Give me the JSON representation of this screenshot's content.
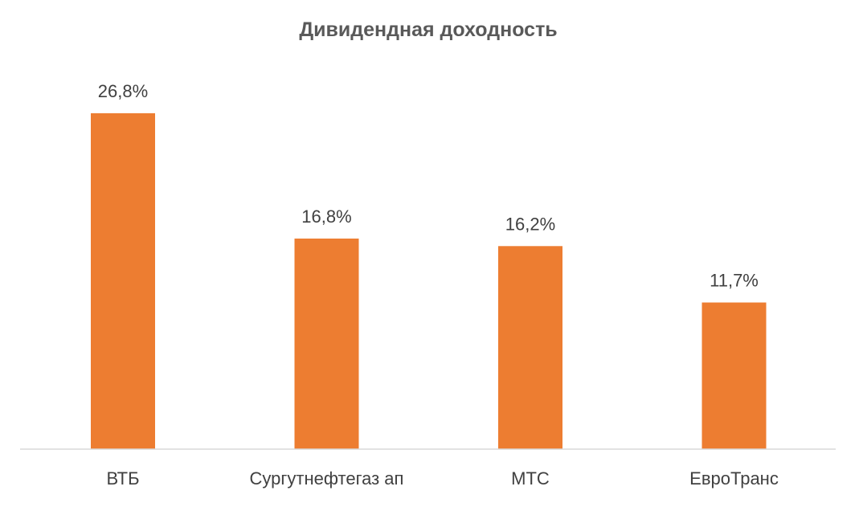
{
  "chart_data": {
    "type": "bar",
    "title": "Дивидендная доходность",
    "categories": [
      "ВТБ",
      "Сургутнефтегаз ап",
      "МТС",
      "ЕвроТранс"
    ],
    "values": [
      26.8,
      16.8,
      16.2,
      11.7
    ],
    "value_labels": [
      "26,8%",
      "16,8%",
      "16,2%",
      "11,7%"
    ],
    "xlabel": "",
    "ylabel": "",
    "ylim": [
      0,
      30
    ],
    "grid": false,
    "legend": "none",
    "bar_color": "#ED7D31",
    "axis_color": "#D9D9D9"
  }
}
